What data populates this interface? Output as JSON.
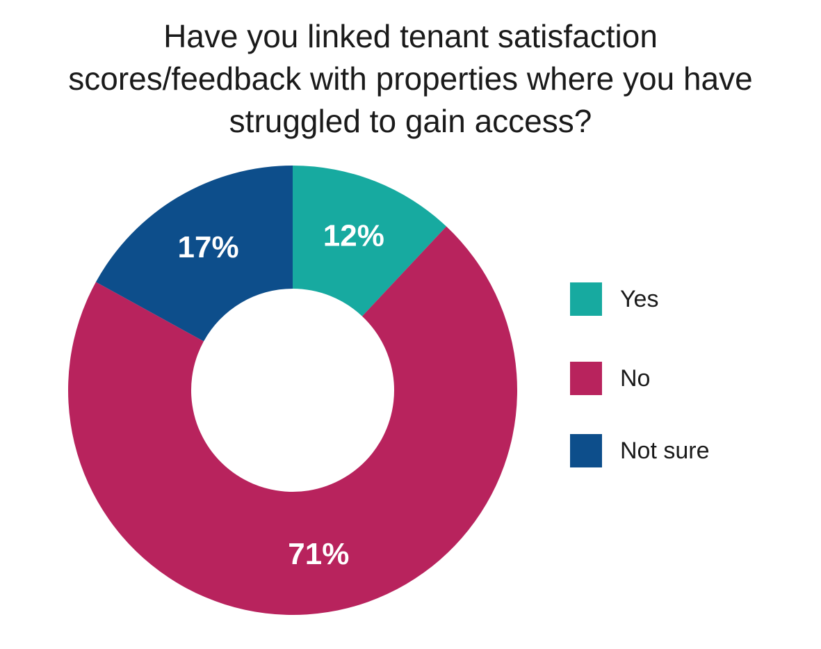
{
  "chart_data": {
    "type": "pie",
    "title_lines": [
      "Have you linked tenant satisfaction",
      "scores/feedback with properties where you have",
      "struggled to gain access?"
    ],
    "categories": [
      "Yes",
      "No",
      "Not sure"
    ],
    "values": [
      12,
      71,
      17
    ],
    "value_labels": [
      "12%",
      "71%",
      "17%"
    ],
    "colors": [
      "#17aaa0",
      "#b8235d",
      "#0d4e8b"
    ],
    "donut": true,
    "legend_position": "right",
    "start_angle": "top, clockwise"
  }
}
